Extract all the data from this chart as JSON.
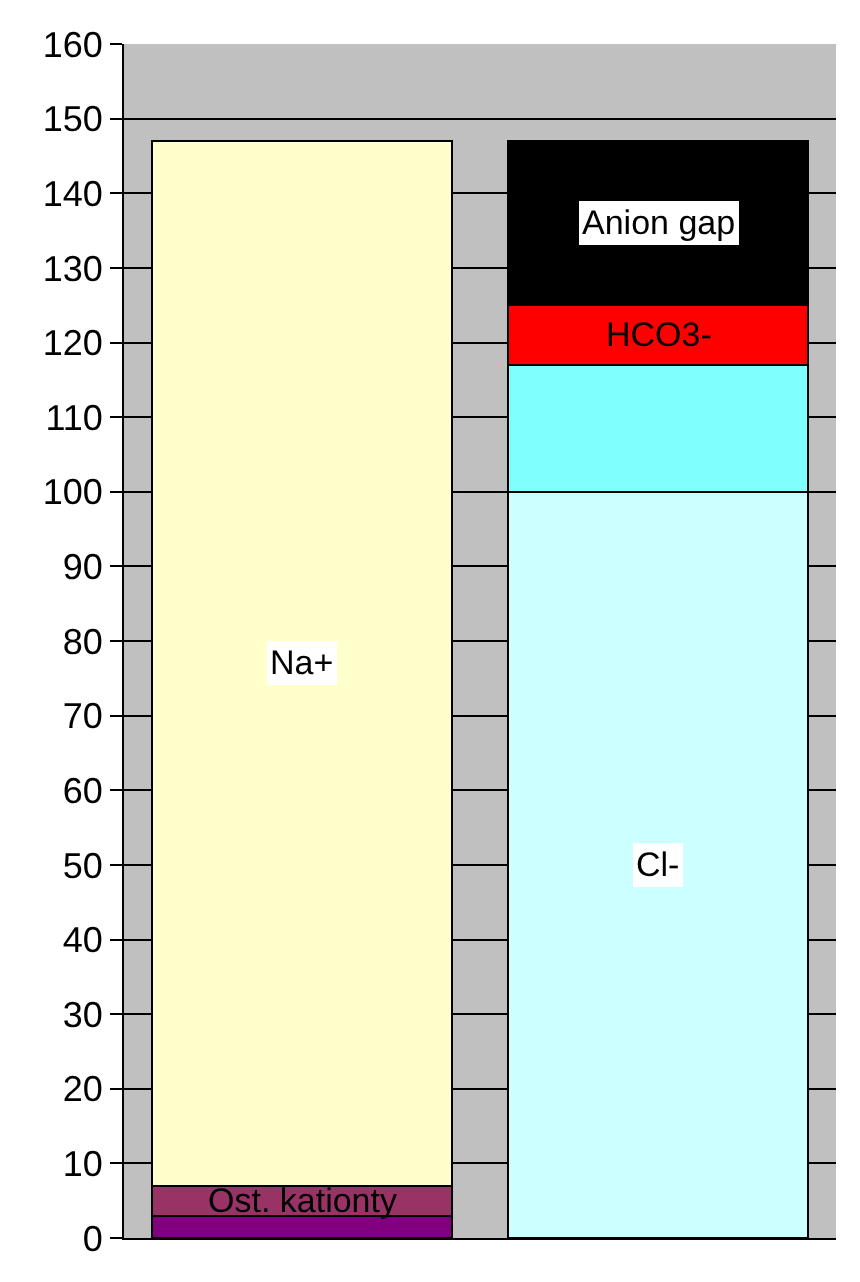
{
  "chart_data": {
    "type": "bar",
    "stacked": true,
    "categories": [
      null,
      null
    ],
    "series": [
      {
        "color": "#800080",
        "values": [
          3,
          null
        ]
      },
      {
        "name": "Ost. kationty",
        "color": "#993366",
        "values": [
          4,
          null
        ]
      },
      {
        "name": "Na+",
        "color": "#ffffcc",
        "values": [
          140,
          null
        ]
      },
      {
        "name": "Cl-",
        "color": "#ccffff",
        "values": [
          null,
          100
        ]
      },
      {
        "color": "#80ffff",
        "values": [
          null,
          17
        ]
      },
      {
        "name": "HCO3-",
        "color": "#ff0000",
        "values": [
          null,
          8
        ]
      },
      {
        "name": "Anion gap",
        "color": "#000000",
        "values": [
          null,
          22
        ]
      }
    ],
    "ylim": [
      0,
      160
    ],
    "yticks": [
      0,
      10,
      20,
      30,
      40,
      50,
      60,
      70,
      80,
      90,
      100,
      110,
      120,
      130,
      140,
      150,
      160
    ],
    "grid": "y",
    "legend": false,
    "tick_labels": "y"
  }
}
